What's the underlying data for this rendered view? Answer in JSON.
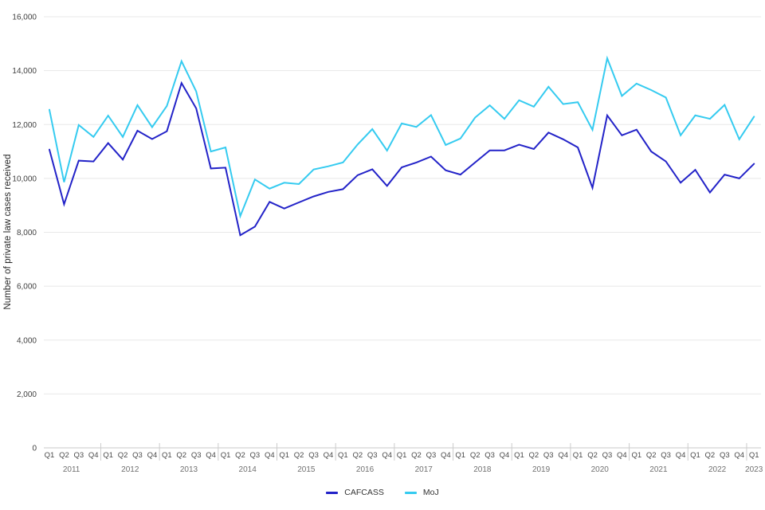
{
  "chart_data": {
    "type": "line",
    "title": "",
    "ylabel": "Number of private law cases received",
    "xlabel": "",
    "ylim": [
      0,
      16000
    ],
    "ytick_step": 2000,
    "ytick_labels": [
      "0",
      "2,000",
      "4,000",
      "6,000",
      "8,000",
      "10,000",
      "12,000",
      "14,000",
      "16,000"
    ],
    "grid": true,
    "legend_position": "bottom-center",
    "years": [
      {
        "label": "2011",
        "quarters": [
          "Q1",
          "Q2",
          "Q3",
          "Q4"
        ]
      },
      {
        "label": "2012",
        "quarters": [
          "Q1",
          "Q2",
          "Q3",
          "Q4"
        ]
      },
      {
        "label": "2013",
        "quarters": [
          "Q1",
          "Q2",
          "Q3",
          "Q4"
        ]
      },
      {
        "label": "2014",
        "quarters": [
          "Q1",
          "Q2",
          "Q3",
          "Q4"
        ]
      },
      {
        "label": "2015",
        "quarters": [
          "Q1",
          "Q2",
          "Q3",
          "Q4"
        ]
      },
      {
        "label": "2016",
        "quarters": [
          "Q1",
          "Q2",
          "Q3",
          "Q4"
        ]
      },
      {
        "label": "2017",
        "quarters": [
          "Q1",
          "Q2",
          "Q3",
          "Q4"
        ]
      },
      {
        "label": "2018",
        "quarters": [
          "Q1",
          "Q2",
          "Q3",
          "Q4"
        ]
      },
      {
        "label": "2019",
        "quarters": [
          "Q1",
          "Q2",
          "Q3",
          "Q4"
        ]
      },
      {
        "label": "2020",
        "quarters": [
          "Q1",
          "Q2",
          "Q3",
          "Q4"
        ]
      },
      {
        "label": "2021",
        "quarters": [
          "Q1",
          "Q2",
          "Q3",
          "Q4"
        ]
      },
      {
        "label": "2022",
        "quarters": [
          "Q1",
          "Q2",
          "Q3",
          "Q4"
        ]
      },
      {
        "label": "2023",
        "quarters": [
          "Q1"
        ]
      }
    ],
    "series": [
      {
        "name": "CAFCASS",
        "color": "#2323c8",
        "values": [
          11070,
          9040,
          10660,
          10630,
          11310,
          10700,
          11770,
          11460,
          11750,
          13540,
          12600,
          10370,
          10400,
          7890,
          8210,
          9130,
          8880,
          9110,
          9330,
          9500,
          9600,
          10120,
          10340,
          9720,
          10410,
          10590,
          10810,
          10300,
          10140,
          10590,
          11040,
          11040,
          11250,
          11090,
          11700,
          11450,
          11150,
          9650,
          12340,
          11600,
          11810,
          11000,
          10630,
          9840,
          10320,
          9480,
          10140,
          10000,
          10540
        ]
      },
      {
        "name": "MoJ",
        "color": "#35cbf0",
        "values": [
          12550,
          9860,
          11980,
          11540,
          12330,
          11540,
          12720,
          11900,
          12690,
          14350,
          13230,
          11000,
          11150,
          8600,
          9960,
          9620,
          9840,
          9790,
          10330,
          10450,
          10590,
          11260,
          11830,
          11030,
          12040,
          11910,
          12350,
          11240,
          11480,
          12260,
          12710,
          12210,
          12900,
          12660,
          13400,
          12760,
          12830,
          11800,
          14460,
          13060,
          13520,
          13280,
          13000,
          11600,
          12340,
          12210,
          12730,
          11450,
          12290
        ]
      }
    ],
    "axis_colors": {
      "gridline": "#e8e8e8",
      "axis_line": "#c9c9c9",
      "year_separator": "#cccccc",
      "ytick_text": "#404040",
      "quarter_text": "#4a4a4a",
      "year_text": "#707070"
    }
  }
}
